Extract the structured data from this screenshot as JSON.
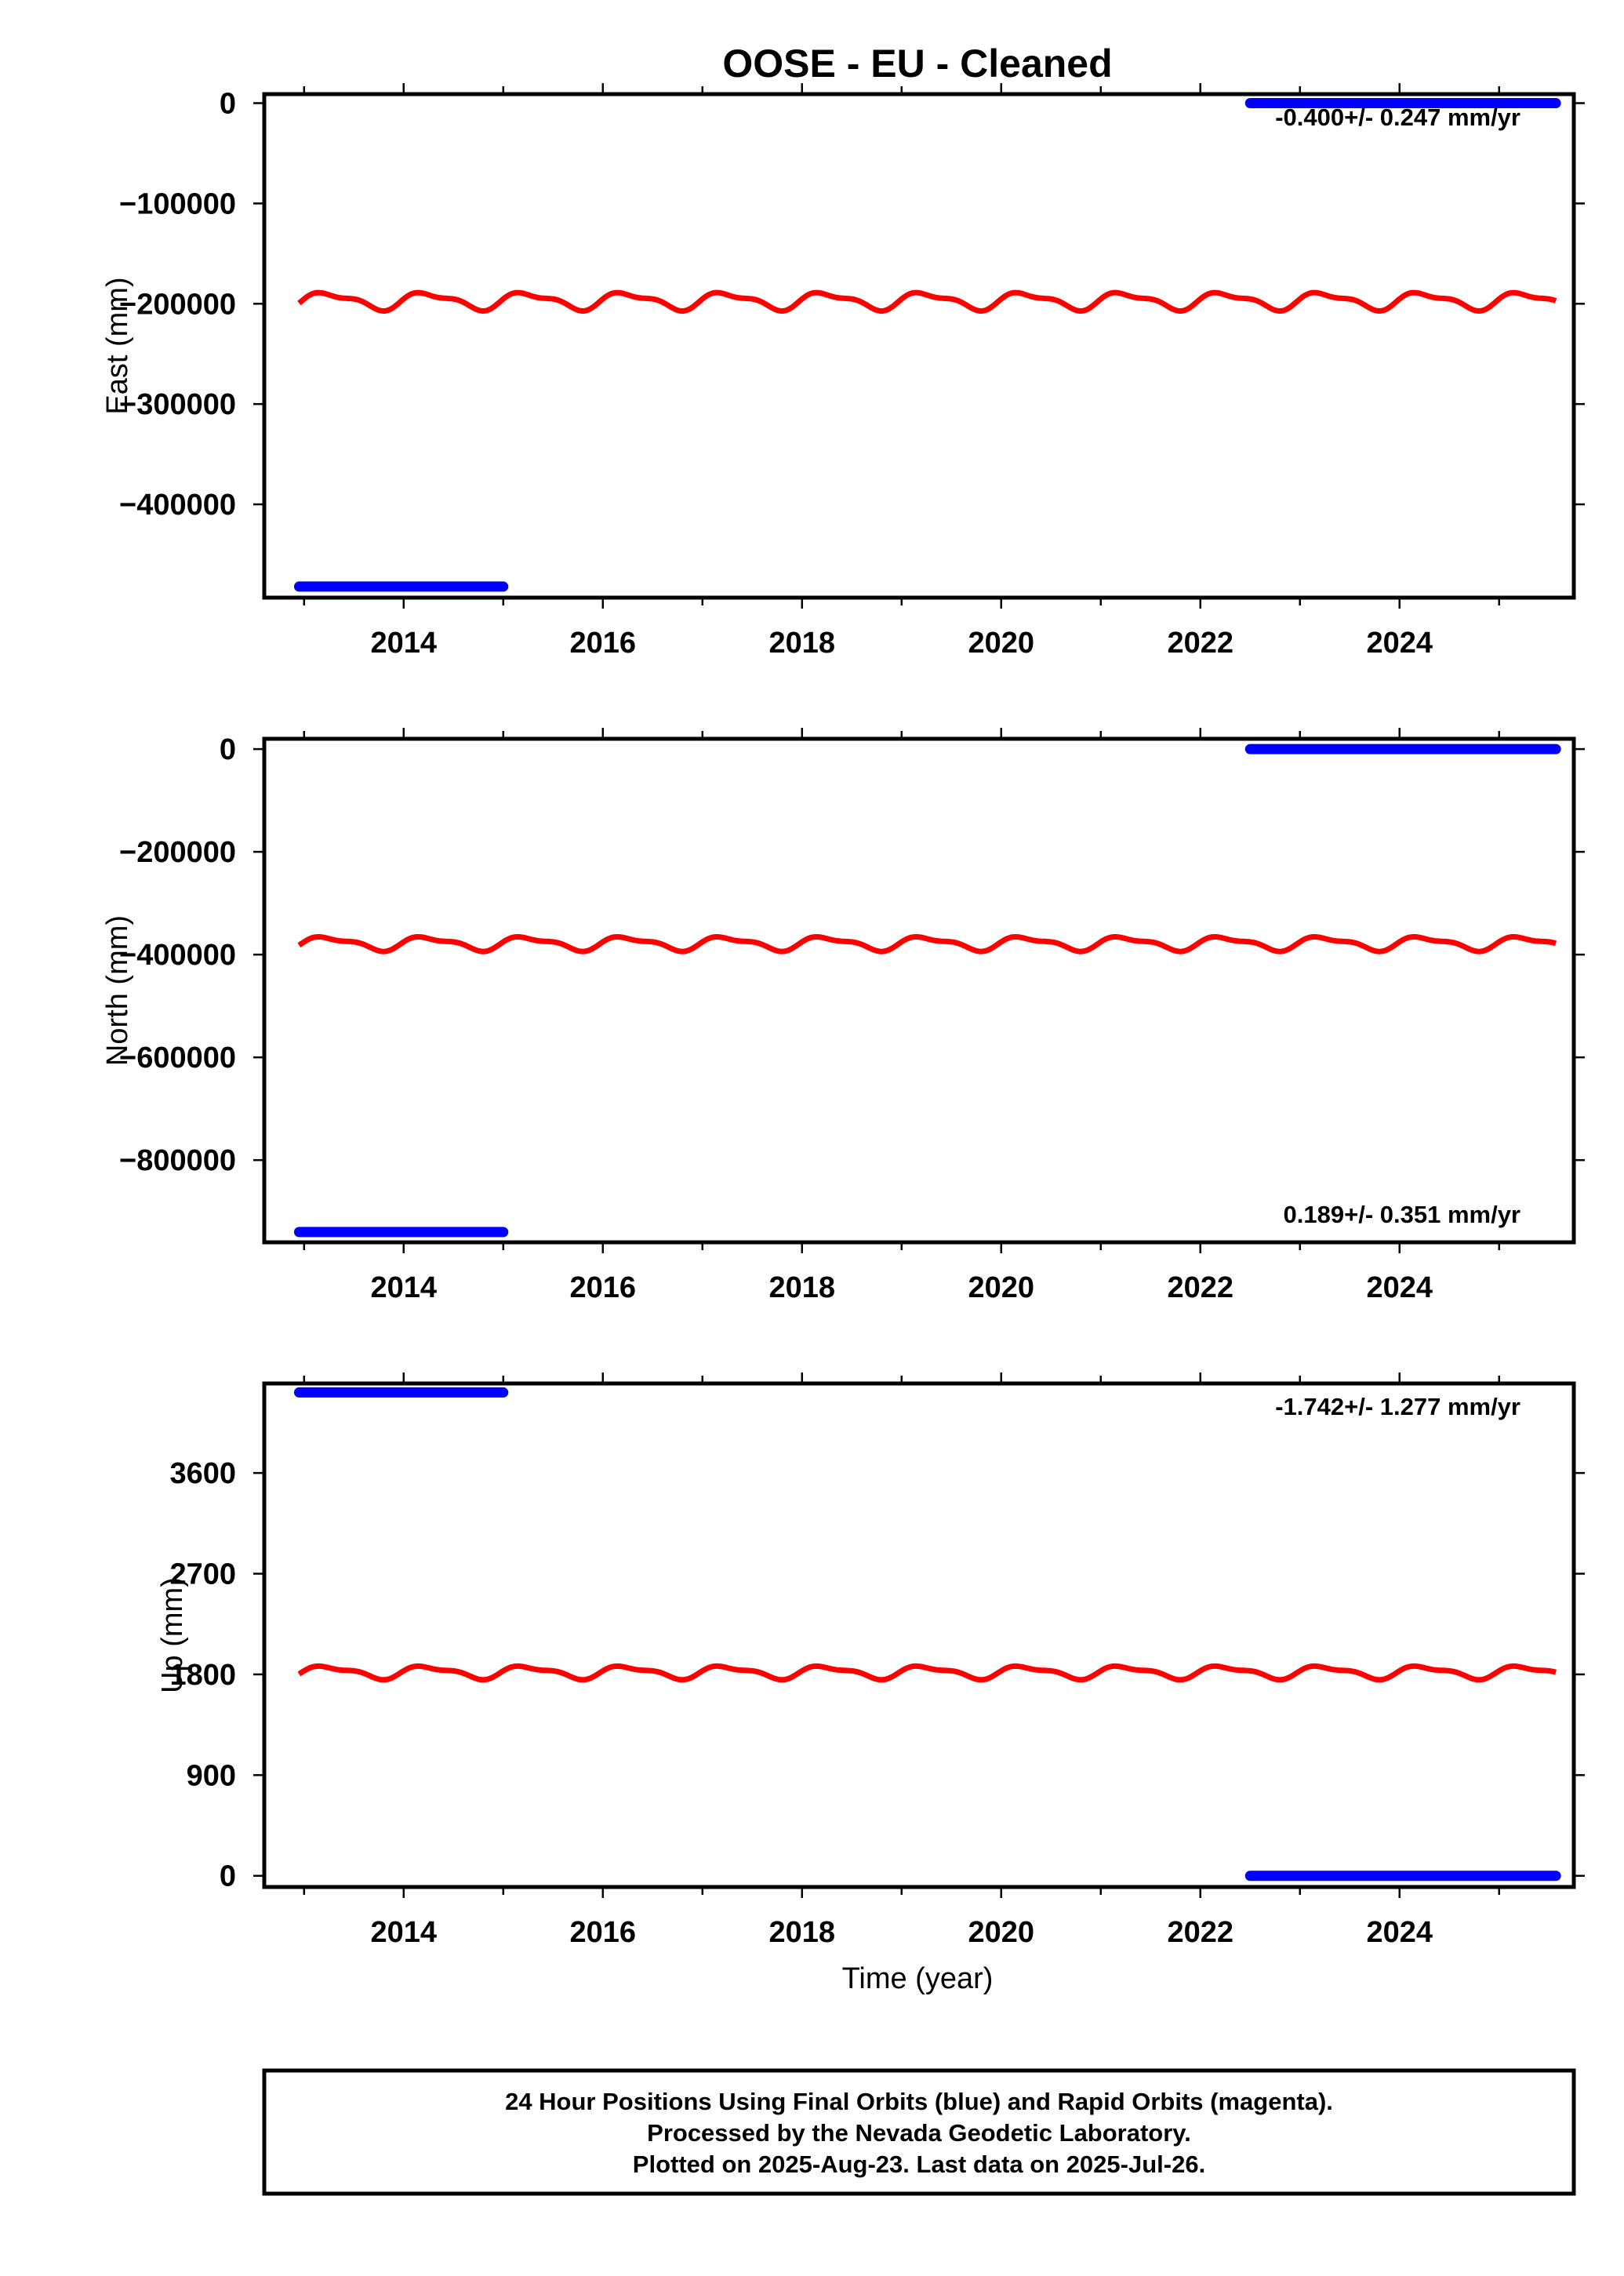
{
  "title": "OOSE  - EU - Cleaned",
  "xlabel": "Time (year)",
  "colors": {
    "final": "#0000ff",
    "model": "#ff0000",
    "frame": "#000000"
  },
  "footer": {
    "line1": "24 Hour Positions Using Final Orbits (blue) and Rapid Orbits (magenta).",
    "line2": "Processed by the Nevada Geodetic Laboratory.",
    "line3": "Plotted on 2025-Aug-23. Last data on 2025-Jul-26."
  },
  "chart_data": [
    {
      "type": "scatter",
      "component": "east",
      "ylabel": "East (mm)",
      "rate_text": "-0.400+/- 0.247 mm/yr",
      "rate_position": "top-right",
      "xlim": [
        2012.6,
        2025.75
      ],
      "ylim": [
        -493000,
        9000
      ],
      "xticks": [
        2014,
        2016,
        2018,
        2020,
        2022,
        2024
      ],
      "yticks": [
        0,
        -100000,
        -200000,
        -300000,
        -400000
      ],
      "ytick_labels": [
        "0",
        "−100000",
        "−200000",
        "−300000",
        "−400000"
      ],
      "series": [
        {
          "x_start": 2012.95,
          "x_end": 2015.0,
          "value": -482000
        },
        {
          "x_start": 2022.5,
          "x_end": 2025.57,
          "value": 0
        }
      ],
      "model": {
        "x_start": 2012.95,
        "x_end": 2025.57,
        "mean": -197000,
        "amplitude": 9000
      }
    },
    {
      "type": "scatter",
      "component": "north",
      "ylabel": "North (mm)",
      "rate_text": "0.189+/- 0.351 mm/yr",
      "rate_position": "bottom-right",
      "xlim": [
        2012.6,
        2025.75
      ],
      "ylim": [
        -960000,
        20000
      ],
      "xticks": [
        2014,
        2016,
        2018,
        2020,
        2022,
        2024
      ],
      "yticks": [
        0,
        -200000,
        -400000,
        -600000,
        -800000
      ],
      "ytick_labels": [
        "0",
        "−200000",
        "−400000",
        "−600000",
        "−800000"
      ],
      "series": [
        {
          "x_start": 2012.95,
          "x_end": 2015.0,
          "value": -940000
        },
        {
          "x_start": 2022.5,
          "x_end": 2025.57,
          "value": 0
        }
      ],
      "model": {
        "x_start": 2012.95,
        "x_end": 2025.57,
        "mean": -378000,
        "amplitude": 14000
      }
    },
    {
      "type": "scatter",
      "component": "up",
      "ylabel": "Up (mm)",
      "rate_text": "-1.742+/- 1.277 mm/yr",
      "rate_position": "top-right",
      "xlim": [
        2012.6,
        2025.75
      ],
      "ylim": [
        -100,
        4400
      ],
      "xticks": [
        2014,
        2016,
        2018,
        2020,
        2022,
        2024
      ],
      "yticks": [
        0,
        900,
        1800,
        2700,
        3600
      ],
      "ytick_labels": [
        "0",
        "900",
        "1800",
        "2700",
        "3600"
      ],
      "series": [
        {
          "x_start": 2012.95,
          "x_end": 2015.0,
          "value": 4320
        },
        {
          "x_start": 2022.5,
          "x_end": 2025.57,
          "value": 0
        }
      ],
      "model": {
        "x_start": 2012.95,
        "x_end": 2025.57,
        "mean": 1820,
        "amplitude": 60
      }
    }
  ]
}
